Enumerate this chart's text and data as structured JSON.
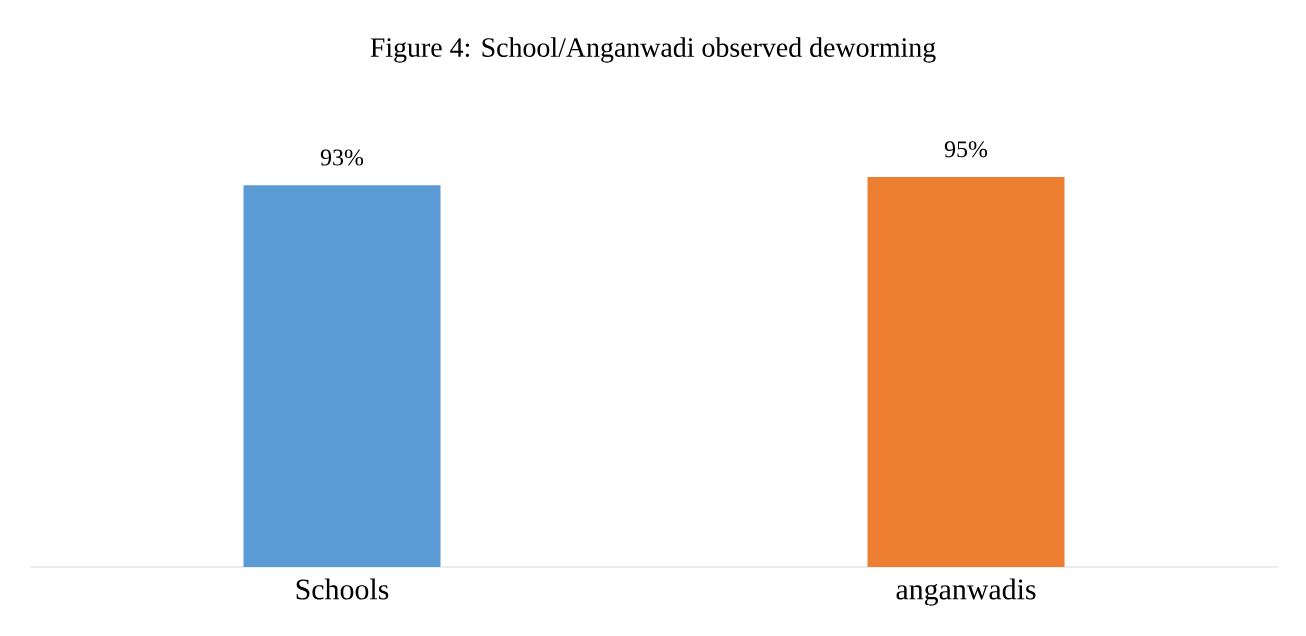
{
  "chart_data": {
    "type": "bar",
    "title": "Figure 4: School/Anganwadi observed deworming",
    "categories": [
      "Schools",
      "anganwadis"
    ],
    "values": [
      93,
      95
    ],
    "colors": [
      "#5b9bd5",
      "#ed7d31"
    ],
    "value_labels": [
      "93%",
      "95%"
    ]
  }
}
